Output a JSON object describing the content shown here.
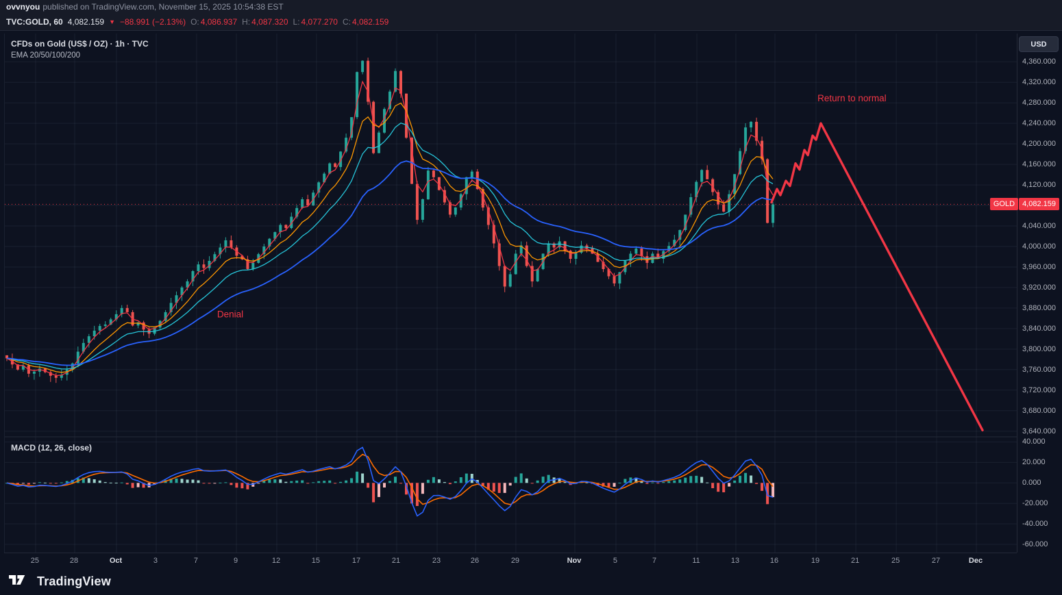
{
  "publish_bar": {
    "username": "ovvnyou",
    "rest": "published on TradingView.com, November 15, 2025 10:54:38 EST"
  },
  "info_bar": {
    "symbol": "TVC:GOLD, 60",
    "last": "4,082.159",
    "direction_icon": "▼",
    "change": "−88.991 (−2.13%)",
    "o_label": "O:",
    "o": "4,086.937",
    "h_label": "H:",
    "h": "4,087.320",
    "l_label": "L:",
    "l": "4,077.270",
    "c_label": "C:",
    "c": "4,082.159"
  },
  "chart": {
    "legend_title": "CFDs on Gold (US$ / OZ) · 1h · TVC",
    "legend_ema": "EMA 20/50/100/200",
    "macd_label": "MACD (12, 26, close)",
    "currency_button": "USD",
    "price_chip": {
      "tag": "GOLD",
      "value": "4,082.159"
    }
  },
  "footer": {
    "brand": "TradingView"
  },
  "chart_data": {
    "type": "candlestick",
    "title": "CFDs on Gold (US$ / OZ) · 1h · TVC",
    "indicators": [
      "EMA 20/50/100/200",
      "MACD (12, 26, close)"
    ],
    "ohlc_last": {
      "open": 4086.937,
      "high": 4087.32,
      "low": 4077.27,
      "close": 4082.159,
      "change": -88.991,
      "change_pct": -2.13
    },
    "price_axis": {
      "ticks": [
        4360,
        4320,
        4280,
        4240,
        4200,
        4160,
        4120,
        4080,
        4040,
        4000,
        3960,
        3920,
        3880,
        3840,
        3800,
        3760,
        3720,
        3680,
        3640
      ],
      "domain": [
        3629,
        4415
      ],
      "current_price": 4082.159
    },
    "macd_axis": {
      "ticks": [
        40,
        20,
        0,
        -20,
        -40,
        -60
      ],
      "domain": [
        -68,
        45
      ]
    },
    "x_ticks": [
      {
        "label": "25",
        "t": 0.0304
      },
      {
        "label": "28",
        "t": 0.069
      },
      {
        "label": "Oct",
        "t": 0.1103,
        "month": true
      },
      {
        "label": "3",
        "t": 0.1495
      },
      {
        "label": "7",
        "t": 0.1894
      },
      {
        "label": "9",
        "t": 0.2287
      },
      {
        "label": "12",
        "t": 0.2686
      },
      {
        "label": "15",
        "t": 0.3078
      },
      {
        "label": "17",
        "t": 0.3478
      },
      {
        "label": "21",
        "t": 0.387
      },
      {
        "label": "23",
        "t": 0.4269
      },
      {
        "label": "26",
        "t": 0.4648
      },
      {
        "label": "29",
        "t": 0.5047
      },
      {
        "label": "Nov",
        "t": 0.5629,
        "month": true
      },
      {
        "label": "5",
        "t": 0.6035
      },
      {
        "label": "7",
        "t": 0.6421
      },
      {
        "label": "11",
        "t": 0.6834
      },
      {
        "label": "13",
        "t": 0.7219
      },
      {
        "label": "16",
        "t": 0.7605
      },
      {
        "label": "19",
        "t": 0.8011
      },
      {
        "label": "21",
        "t": 0.8404
      },
      {
        "label": "25",
        "t": 0.8803
      },
      {
        "label": "27",
        "t": 0.9202
      },
      {
        "label": "Dec",
        "t": 0.9594,
        "month": true
      }
    ],
    "candles_t_range": [
      0.002,
      0.7585
    ],
    "open_first": 3788,
    "closes": [
      3782,
      3770,
      3760,
      3768,
      3752,
      3756,
      3762,
      3755,
      3748,
      3744,
      3750,
      3760,
      3772,
      3795,
      3812,
      3825,
      3836,
      3845,
      3848,
      3858,
      3868,
      3880,
      3872,
      3846,
      3852,
      3838,
      3830,
      3842,
      3855,
      3872,
      3890,
      3905,
      3920,
      3932,
      3952,
      3965,
      3958,
      3972,
      3985,
      3998,
      4012,
      3998,
      3982,
      3975,
      3956,
      3968,
      3985,
      4000,
      4015,
      4028,
      4042,
      4036,
      4058,
      4075,
      4092,
      4080,
      4105,
      4125,
      4142,
      4162,
      4155,
      4185,
      4212,
      4252,
      4340,
      4362,
      4282,
      4182,
      4222,
      4268,
      4302,
      4342,
      4298,
      4212,
      4122,
      4052,
      4092,
      4148,
      4135,
      4110,
      4086,
      4062,
      4076,
      4102,
      4135,
      4146,
      4112,
      4076,
      4042,
      4006,
      3962,
      3922,
      3946,
      3986,
      4002,
      3962,
      3932,
      3956,
      3986,
      4006,
      3998,
      4010,
      3992,
      3976,
      3988,
      4002,
      3996,
      3986,
      3970,
      3956,
      3942,
      3928,
      3950,
      3972,
      3986,
      3996,
      3981,
      3968,
      3986,
      3976,
      3991,
      4001,
      4013,
      4032,
      4062,
      4096,
      4126,
      4149,
      4131,
      4106,
      4082,
      4068,
      4102,
      4141,
      4186,
      4232,
      4243,
      4206,
      4170,
      4046,
      4082.159
    ],
    "ema_periods": [
      20,
      50,
      100,
      200
    ],
    "ema_render_periods": [
      3,
      8,
      15,
      30
    ],
    "macd_params": {
      "fast": 3,
      "slow": 8,
      "signal": 4,
      "scale": 0.45,
      "hist_scale": 1.35
    },
    "projection": {
      "color": "#f23645",
      "points": [
        [
          0.7571,
          4086
        ],
        [
          0.7625,
          4112
        ],
        [
          0.7659,
          4100
        ],
        [
          0.7713,
          4128
        ],
        [
          0.7754,
          4118
        ],
        [
          0.7808,
          4162
        ],
        [
          0.7848,
          4150
        ],
        [
          0.7896,
          4188
        ],
        [
          0.793,
          4178
        ],
        [
          0.7977,
          4216
        ],
        [
          0.8011,
          4208
        ],
        [
          0.8058,
          4240
        ],
        [
          0.9655,
          3642
        ]
      ]
    },
    "annotations": [
      {
        "text": "Denial",
        "t": 0.2097,
        "price": 3862,
        "color": "#f23645"
      },
      {
        "text": "Return to normal",
        "t": 0.8025,
        "price": 4283,
        "color": "#f23645"
      }
    ],
    "colors": {
      "background": "#0d1220",
      "grid": "rgba(141,155,183,0.10)",
      "candle_up": "#26a69a",
      "candle_down": "#ef5350",
      "ema": [
        "#f23645",
        "#ff9800",
        "#26c6da",
        "#2962ff"
      ],
      "macd_line": "#2962ff",
      "signal_line": "#ff6d00",
      "hist_pos": "#26a69a",
      "hist_pos_weak": "#9fd4cd",
      "hist_neg": "#ef5350",
      "hist_neg_weak": "#f5b8bb",
      "projection": "#f23645",
      "current_price": "#f23645",
      "axis_text": "#b2b5be"
    }
  }
}
